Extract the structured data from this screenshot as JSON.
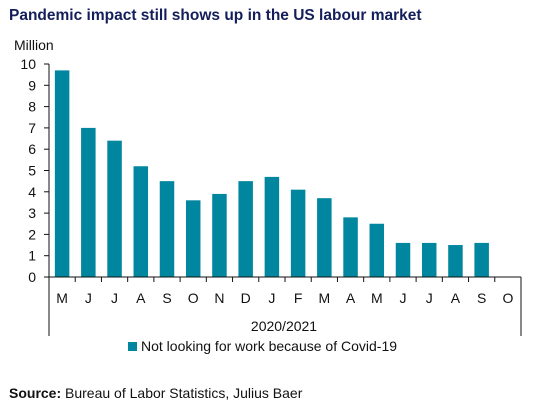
{
  "title": "Pandemic impact still shows up in the US labour market",
  "source_label": "Source:",
  "source_text": "Bureau of Labor Statistics, Julius Baer",
  "colors": {
    "bar": "#00869e",
    "title": "#141e5a",
    "axis": "#111111"
  },
  "chart_data": {
    "type": "bar",
    "unit_label": "Million",
    "period_label": "2020/2021",
    "categories": [
      "M",
      "J",
      "J",
      "A",
      "S",
      "O",
      "N",
      "D",
      "J",
      "F",
      "M",
      "A",
      "M",
      "J",
      "J",
      "A",
      "S",
      "O"
    ],
    "series": [
      {
        "name": "Not looking for work because of Covid-19",
        "values": [
          9.7,
          7.0,
          6.4,
          5.2,
          4.5,
          3.6,
          3.9,
          4.5,
          4.7,
          4.1,
          3.7,
          2.8,
          2.5,
          1.6,
          1.6,
          1.5,
          1.6,
          null
        ]
      }
    ],
    "ylim": [
      0,
      10
    ],
    "yticks": [
      0,
      1,
      2,
      3,
      4,
      5,
      6,
      7,
      8,
      9,
      10
    ],
    "grid": false,
    "legend_position": "bottom"
  }
}
